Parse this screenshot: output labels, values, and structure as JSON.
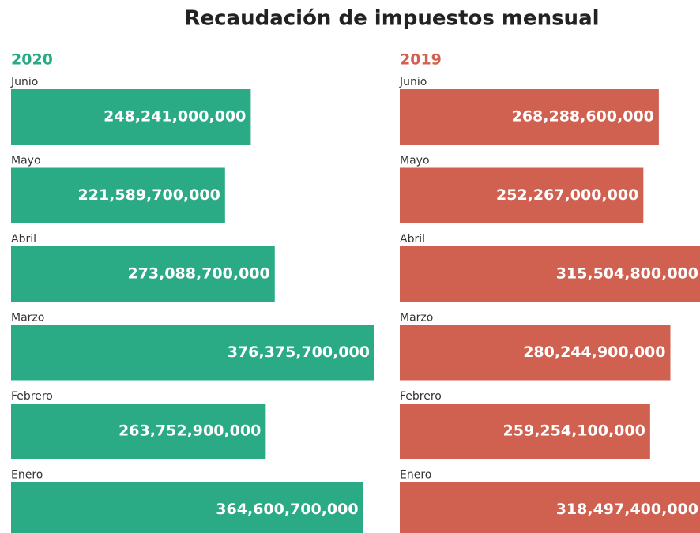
{
  "title": "Recaudación de impuestos mensual",
  "chart_data": [
    {
      "type": "bar",
      "orientation": "horizontal",
      "title": "2020",
      "color": "#2aaa85",
      "categories": [
        "Junio",
        "Mayo",
        "Abril",
        "Marzo",
        "Febrero",
        "Enero"
      ],
      "values": [
        248241000000,
        221589700000,
        273088700000,
        376375700000,
        263752900000,
        364600700000
      ],
      "value_labels": [
        "248,241,000,000",
        "221,589,700,000",
        "273,088,700,000",
        "376,375,700,000",
        "263,752,900,000",
        "364,600,700,000"
      ]
    },
    {
      "type": "bar",
      "orientation": "horizontal",
      "title": "2019",
      "color": "#d06150",
      "categories": [
        "Junio",
        "Mayo",
        "Abril",
        "Marzo",
        "Febrero",
        "Enero"
      ],
      "values": [
        268288600000,
        252267000000,
        315504800000,
        280244900000,
        259254100000,
        318497400000
      ],
      "value_labels": [
        "268,288,600,000",
        "252,267,000,000",
        "315,504,800,000",
        "280,244,900,000",
        "259,254,100,000",
        "318,497,400,000"
      ]
    }
  ]
}
